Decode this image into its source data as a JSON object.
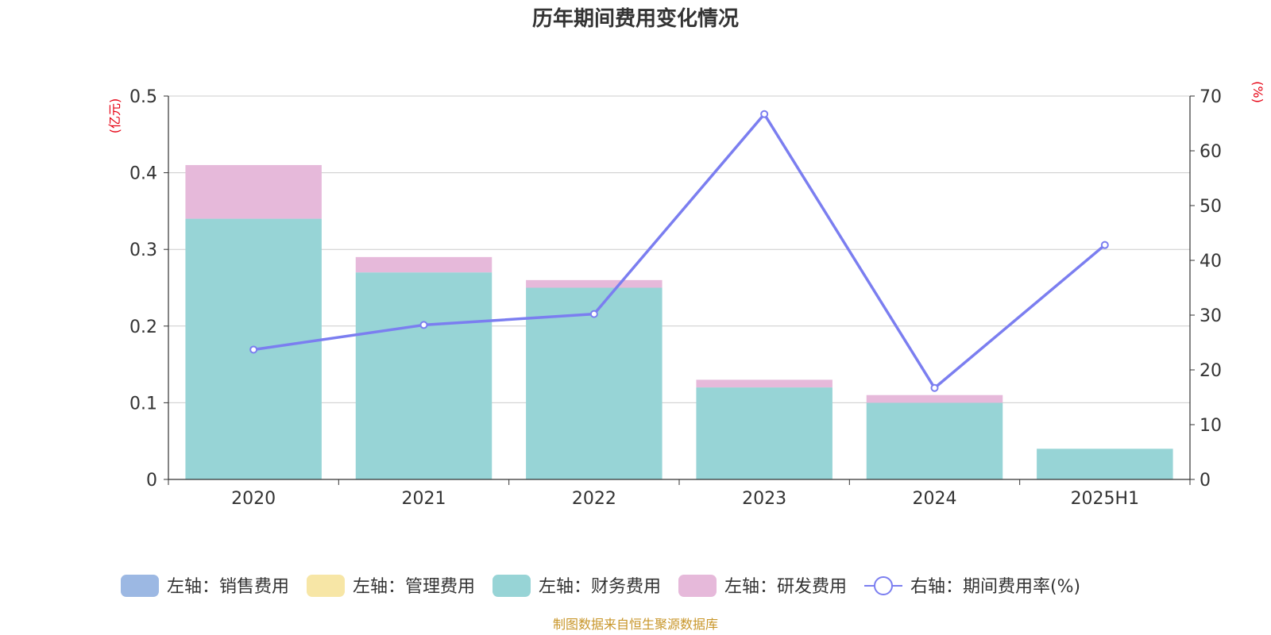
{
  "chart_data": {
    "type": "bar",
    "title": "历年期间费用变化情况",
    "categories": [
      "2020",
      "2021",
      "2022",
      "2023",
      "2024",
      "2025H1"
    ],
    "stacked": true,
    "left_axis": {
      "unit": "(亿元)",
      "ylim": [
        0,
        0.5
      ],
      "ticks": [
        "0",
        "0.1",
        "0.2",
        "0.3",
        "0.4",
        "0.5"
      ]
    },
    "right_axis": {
      "unit": "(%)",
      "ylim": [
        0,
        70
      ],
      "ticks": [
        "0",
        "10",
        "20",
        "30",
        "40",
        "50",
        "60",
        "70"
      ]
    },
    "series": [
      {
        "name": "左轴：销售费用",
        "kind": "bar",
        "axis": "left",
        "color": "#9cb8e3",
        "values": [
          0,
          0,
          0,
          0,
          0,
          0
        ]
      },
      {
        "name": "左轴：管理费用",
        "kind": "bar",
        "axis": "left",
        "color": "#f7e6a6",
        "values": [
          0,
          0,
          0,
          0,
          0,
          0
        ]
      },
      {
        "name": "左轴：财务费用",
        "kind": "bar",
        "axis": "left",
        "color": "#97d4d6",
        "values": [
          0.34,
          0.27,
          0.25,
          0.12,
          0.1,
          0.04
        ]
      },
      {
        "name": "左轴：研发费用",
        "kind": "bar",
        "axis": "left",
        "color": "#e6b9da",
        "values": [
          0.07,
          0.02,
          0.01,
          0.01,
          0.01,
          0
        ]
      },
      {
        "name": "右轴：期间费用率(%)",
        "kind": "line",
        "axis": "right",
        "color": "#7b7ef0",
        "values": [
          23.7,
          28.2,
          30.2,
          66.7,
          16.7,
          42.8
        ]
      }
    ],
    "grid": true,
    "legend_position": "bottom",
    "source_note": "制图数据来自恒生聚源数据库"
  }
}
